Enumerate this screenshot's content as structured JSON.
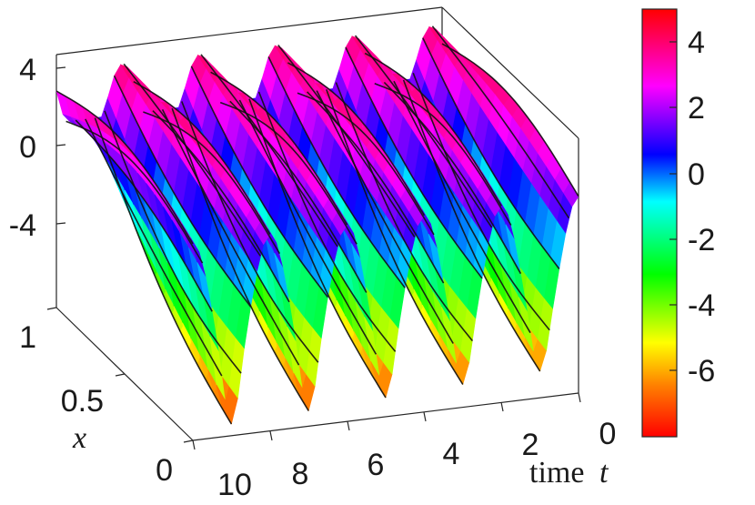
{
  "chart_data": {
    "type": "surface",
    "title": "",
    "x_axis": {
      "label": "time t",
      "ticks": [
        0,
        2,
        4,
        6,
        8,
        10
      ],
      "range": [
        0,
        10
      ]
    },
    "y_axis": {
      "label": "x",
      "ticks": [
        0,
        0.5,
        1
      ],
      "range": [
        0,
        1
      ]
    },
    "z_axis": {
      "ticks": [
        4,
        0,
        -4
      ],
      "range": [
        -8,
        5
      ]
    },
    "colorbar": {
      "colormap": "hsv",
      "range": [
        -8,
        5
      ],
      "ticks": [
        4,
        2,
        0,
        -2,
        -4,
        -6
      ],
      "tick_labels": [
        "4",
        "2",
        "0",
        "-2",
        "-4",
        "-6"
      ]
    },
    "contour_lines": true,
    "surface_features": {
      "back_ridge_peaks_t": [
        0.3,
        2.3,
        4.3,
        6.3,
        8.3
      ],
      "front_valley_troughs_t": [
        0.0,
        2.0,
        4.0,
        6.0,
        8.0
      ],
      "max_value_approx": 4.8,
      "min_value_approx": -7.8
    }
  },
  "labels": {
    "z_ticks": [
      "4",
      "0",
      "-4"
    ],
    "x_ticks": [
      "0",
      "0.5",
      "1"
    ],
    "t_ticks": [
      "0",
      "2",
      "4",
      "6",
      "8",
      "10"
    ],
    "x_axis_title": "x",
    "t_axis_title_word": "time",
    "t_axis_title_var": "t",
    "colorbar_ticks": [
      "4",
      "2",
      "0",
      "-2",
      "-4",
      "-6"
    ]
  },
  "colors": {
    "colormap_stops": [
      "#ff0000",
      "#ff8000",
      "#ffff00",
      "#00ff00",
      "#00ffff",
      "#0000ff",
      "#ff00ff",
      "#ff0000"
    ]
  }
}
